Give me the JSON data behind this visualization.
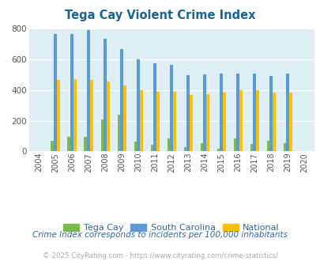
{
  "title": "Tega Cay Violent Crime Index",
  "title_color": "#1a6496",
  "years": [
    2004,
    2005,
    2006,
    2007,
    2008,
    2009,
    2010,
    2011,
    2012,
    2013,
    2014,
    2015,
    2016,
    2017,
    2018,
    2019,
    2020
  ],
  "tega_cay": [
    0,
    70,
    95,
    95,
    210,
    240,
    62,
    42,
    83,
    30,
    52,
    15,
    85,
    50,
    68,
    52,
    0
  ],
  "south_carolina": [
    0,
    768,
    768,
    790,
    733,
    670,
    600,
    575,
    562,
    498,
    500,
    505,
    505,
    505,
    492,
    508,
    0
  ],
  "national": [
    0,
    468,
    474,
    468,
    455,
    430,
    400,
    388,
    390,
    367,
    376,
    383,
    399,
    399,
    383,
    383,
    0
  ],
  "bar_width": 0.18,
  "ylim": [
    0,
    800
  ],
  "yticks": [
    0,
    200,
    400,
    600,
    800
  ],
  "plot_bg": "#ddeef5",
  "green_color": "#7db84e",
  "blue_color": "#5b9bd5",
  "orange_color": "#ffc000",
  "subtitle": "Crime Index corresponds to incidents per 100,000 inhabitants",
  "footer": "© 2025 CityRating.com - https://www.cityrating.com/crime-statistics/",
  "legend_labels": [
    "Tega Cay",
    "South Carolina",
    "National"
  ],
  "subtitle_color": "#336699",
  "footer_color": "#aaaaaa"
}
